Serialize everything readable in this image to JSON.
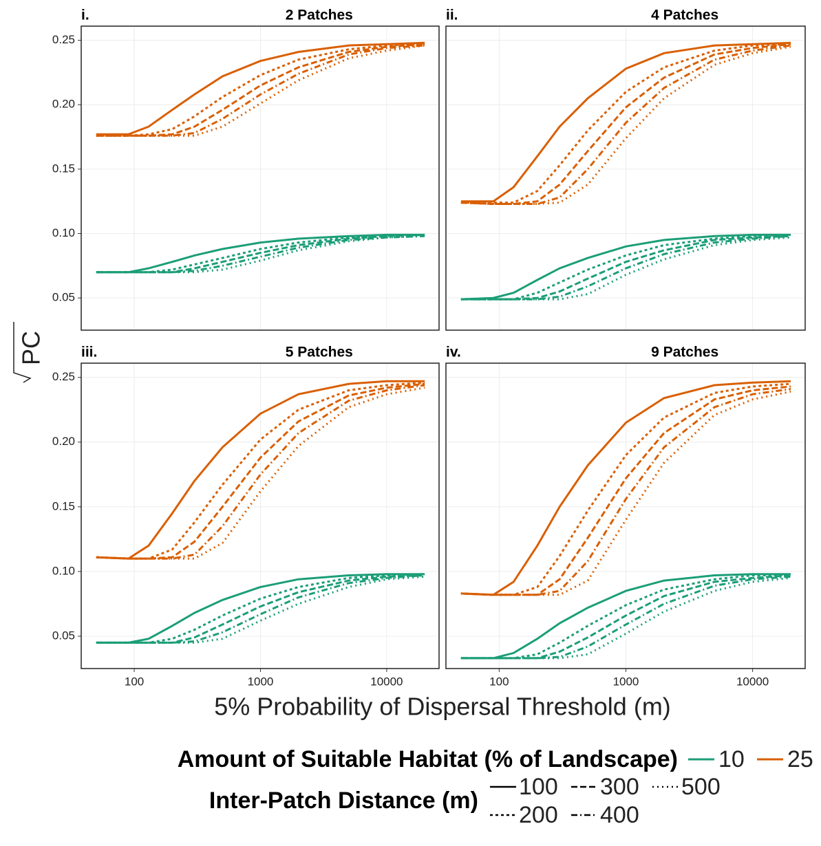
{
  "chart_data": [
    {
      "type": "line",
      "panel": "i.",
      "title": "2 Patches",
      "log_x": true,
      "grid": true,
      "x": [
        50,
        90,
        130,
        200,
        300,
        500,
        1000,
        2000,
        5000,
        10000,
        20000
      ],
      "xlim": [
        38,
        26000
      ],
      "xticks": [
        100,
        1000,
        10000
      ],
      "ylim": [
        0.025,
        0.261
      ],
      "yticks": [
        0.05,
        {
          "value": 0.1,
          "label": "0.10"
        },
        0.15,
        {
          "value": 0.2,
          "label": "0.20"
        },
        0.25
      ],
      "series": [
        {
          "habitat": "10",
          "distance": "100",
          "values": [
            0.07,
            0.07,
            0.073,
            0.078,
            0.083,
            0.088,
            0.093,
            0.096,
            0.098,
            0.099,
            0.099
          ]
        },
        {
          "habitat": "10",
          "distance": "200",
          "values": [
            0.07,
            0.07,
            0.07,
            0.072,
            0.076,
            0.081,
            0.088,
            0.093,
            0.097,
            0.098,
            0.099
          ]
        },
        {
          "habitat": "10",
          "distance": "300",
          "values": [
            0.07,
            0.07,
            0.07,
            0.07,
            0.073,
            0.078,
            0.085,
            0.091,
            0.096,
            0.098,
            0.099
          ]
        },
        {
          "habitat": "10",
          "distance": "400",
          "values": [
            0.07,
            0.07,
            0.07,
            0.07,
            0.071,
            0.075,
            0.082,
            0.089,
            0.095,
            0.097,
            0.098
          ]
        },
        {
          "habitat": "10",
          "distance": "500",
          "values": [
            0.07,
            0.07,
            0.07,
            0.07,
            0.07,
            0.072,
            0.079,
            0.087,
            0.094,
            0.097,
            0.098
          ]
        },
        {
          "habitat": "25",
          "distance": "100",
          "values": [
            0.177,
            0.177,
            0.183,
            0.196,
            0.208,
            0.222,
            0.234,
            0.241,
            0.246,
            0.247,
            0.248
          ]
        },
        {
          "habitat": "25",
          "distance": "200",
          "values": [
            0.176,
            0.176,
            0.177,
            0.181,
            0.191,
            0.206,
            0.223,
            0.235,
            0.243,
            0.246,
            0.247
          ]
        },
        {
          "habitat": "25",
          "distance": "300",
          "values": [
            0.176,
            0.176,
            0.176,
            0.177,
            0.183,
            0.196,
            0.215,
            0.229,
            0.241,
            0.245,
            0.247
          ]
        },
        {
          "habitat": "25",
          "distance": "400",
          "values": [
            0.176,
            0.176,
            0.176,
            0.176,
            0.178,
            0.189,
            0.208,
            0.224,
            0.239,
            0.244,
            0.246
          ]
        },
        {
          "habitat": "25",
          "distance": "500",
          "values": [
            0.176,
            0.176,
            0.176,
            0.176,
            0.176,
            0.183,
            0.201,
            0.219,
            0.236,
            0.242,
            0.246
          ]
        }
      ]
    },
    {
      "type": "line",
      "panel": "ii.",
      "title": "4 Patches",
      "log_x": true,
      "grid": true,
      "x": [
        50,
        90,
        130,
        200,
        300,
        500,
        1000,
        2000,
        5000,
        10000,
        20000
      ],
      "xlim": [
        38,
        26000
      ],
      "xticks": [
        100,
        1000,
        10000
      ],
      "ylim": [
        0.025,
        0.261
      ],
      "yticks": [
        0.05,
        {
          "value": 0.1,
          "label": "0.10"
        },
        0.15,
        {
          "value": 0.2,
          "label": "0.20"
        },
        0.25
      ],
      "series": [
        {
          "habitat": "10",
          "distance": "100",
          "values": [
            0.049,
            0.05,
            0.054,
            0.064,
            0.073,
            0.081,
            0.09,
            0.095,
            0.098,
            0.099,
            0.099
          ]
        },
        {
          "habitat": "10",
          "distance": "200",
          "values": [
            0.049,
            0.049,
            0.049,
            0.054,
            0.062,
            0.072,
            0.083,
            0.091,
            0.096,
            0.098,
            0.099
          ]
        },
        {
          "habitat": "10",
          "distance": "300",
          "values": [
            0.049,
            0.049,
            0.049,
            0.05,
            0.055,
            0.065,
            0.078,
            0.087,
            0.095,
            0.097,
            0.098
          ]
        },
        {
          "habitat": "10",
          "distance": "400",
          "values": [
            0.049,
            0.049,
            0.049,
            0.049,
            0.051,
            0.059,
            0.073,
            0.084,
            0.093,
            0.096,
            0.098
          ]
        },
        {
          "habitat": "10",
          "distance": "500",
          "values": [
            0.049,
            0.049,
            0.049,
            0.049,
            0.049,
            0.053,
            0.068,
            0.08,
            0.091,
            0.095,
            0.097
          ]
        },
        {
          "habitat": "25",
          "distance": "100",
          "values": [
            0.125,
            0.125,
            0.136,
            0.16,
            0.183,
            0.205,
            0.228,
            0.24,
            0.246,
            0.247,
            0.248
          ]
        },
        {
          "habitat": "25",
          "distance": "200",
          "values": [
            0.124,
            0.124,
            0.124,
            0.133,
            0.153,
            0.18,
            0.21,
            0.229,
            0.242,
            0.246,
            0.247
          ]
        },
        {
          "habitat": "25",
          "distance": "300",
          "values": [
            0.124,
            0.123,
            0.123,
            0.125,
            0.138,
            0.164,
            0.198,
            0.221,
            0.239,
            0.244,
            0.247
          ]
        },
        {
          "habitat": "25",
          "distance": "400",
          "values": [
            0.124,
            0.123,
            0.123,
            0.123,
            0.128,
            0.15,
            0.186,
            0.213,
            0.235,
            0.242,
            0.246
          ]
        },
        {
          "habitat": "25",
          "distance": "500",
          "values": [
            0.124,
            0.123,
            0.123,
            0.123,
            0.124,
            0.138,
            0.174,
            0.205,
            0.231,
            0.24,
            0.245
          ]
        }
      ]
    },
    {
      "type": "line",
      "panel": "iii.",
      "title": "5 Patches",
      "log_x": true,
      "grid": true,
      "x": [
        50,
        90,
        130,
        200,
        300,
        500,
        1000,
        2000,
        5000,
        10000,
        20000
      ],
      "xlim": [
        38,
        26000
      ],
      "xticks": [
        100,
        1000,
        10000
      ],
      "ylim": [
        0.025,
        0.261
      ],
      "yticks": [
        0.05,
        {
          "value": 0.1,
          "label": "0.10"
        },
        0.15,
        {
          "value": 0.2,
          "label": "0.20"
        },
        0.25
      ],
      "series": [
        {
          "habitat": "10",
          "distance": "100",
          "values": [
            0.045,
            0.045,
            0.048,
            0.058,
            0.068,
            0.078,
            0.088,
            0.094,
            0.097,
            0.098,
            0.098
          ]
        },
        {
          "habitat": "10",
          "distance": "200",
          "values": [
            0.045,
            0.045,
            0.045,
            0.048,
            0.055,
            0.066,
            0.079,
            0.088,
            0.095,
            0.097,
            0.098
          ]
        },
        {
          "habitat": "10",
          "distance": "300",
          "values": [
            0.045,
            0.045,
            0.045,
            0.045,
            0.049,
            0.059,
            0.073,
            0.084,
            0.093,
            0.096,
            0.097
          ]
        },
        {
          "habitat": "10",
          "distance": "400",
          "values": [
            0.045,
            0.045,
            0.045,
            0.045,
            0.046,
            0.053,
            0.067,
            0.08,
            0.091,
            0.095,
            0.097
          ]
        },
        {
          "habitat": "10",
          "distance": "500",
          "values": [
            0.045,
            0.045,
            0.045,
            0.045,
            0.045,
            0.048,
            0.062,
            0.075,
            0.088,
            0.094,
            0.096
          ]
        },
        {
          "habitat": "25",
          "distance": "100",
          "values": [
            0.111,
            0.11,
            0.12,
            0.145,
            0.17,
            0.196,
            0.222,
            0.237,
            0.245,
            0.247,
            0.247
          ]
        },
        {
          "habitat": "25",
          "distance": "200",
          "values": [
            0.111,
            0.11,
            0.11,
            0.117,
            0.138,
            0.167,
            0.202,
            0.225,
            0.24,
            0.244,
            0.246
          ]
        },
        {
          "habitat": "25",
          "distance": "300",
          "values": [
            0.111,
            0.11,
            0.11,
            0.111,
            0.123,
            0.15,
            0.188,
            0.216,
            0.236,
            0.242,
            0.245
          ]
        },
        {
          "habitat": "25",
          "distance": "400",
          "values": [
            0.111,
            0.11,
            0.11,
            0.11,
            0.113,
            0.135,
            0.175,
            0.207,
            0.232,
            0.24,
            0.244
          ]
        },
        {
          "habitat": "25",
          "distance": "500",
          "values": [
            0.111,
            0.11,
            0.11,
            0.11,
            0.11,
            0.122,
            0.162,
            0.197,
            0.227,
            0.237,
            0.242
          ]
        }
      ]
    },
    {
      "type": "line",
      "panel": "iv.",
      "title": "9 Patches",
      "log_x": true,
      "grid": true,
      "x": [
        50,
        90,
        130,
        200,
        300,
        500,
        1000,
        2000,
        5000,
        10000,
        20000
      ],
      "xlim": [
        38,
        26000
      ],
      "xticks": [
        100,
        1000,
        10000
      ],
      "ylim": [
        0.025,
        0.261
      ],
      "yticks": [
        0.05,
        {
          "value": 0.1,
          "label": "0.10"
        },
        0.15,
        {
          "value": 0.2,
          "label": "0.20"
        },
        0.25
      ],
      "series": [
        {
          "habitat": "10",
          "distance": "100",
          "values": [
            0.033,
            0.033,
            0.037,
            0.048,
            0.06,
            0.072,
            0.085,
            0.093,
            0.097,
            0.098,
            0.098
          ]
        },
        {
          "habitat": "10",
          "distance": "200",
          "values": [
            0.033,
            0.033,
            0.033,
            0.036,
            0.045,
            0.058,
            0.074,
            0.086,
            0.094,
            0.097,
            0.097
          ]
        },
        {
          "habitat": "10",
          "distance": "300",
          "values": [
            0.033,
            0.033,
            0.033,
            0.033,
            0.038,
            0.049,
            0.066,
            0.081,
            0.092,
            0.095,
            0.097
          ]
        },
        {
          "habitat": "10",
          "distance": "400",
          "values": [
            0.033,
            0.033,
            0.033,
            0.033,
            0.034,
            0.042,
            0.059,
            0.075,
            0.089,
            0.094,
            0.096
          ]
        },
        {
          "habitat": "10",
          "distance": "500",
          "values": [
            0.033,
            0.033,
            0.033,
            0.033,
            0.033,
            0.036,
            0.052,
            0.069,
            0.085,
            0.092,
            0.095
          ]
        },
        {
          "habitat": "25",
          "distance": "100",
          "values": [
            0.083,
            0.082,
            0.092,
            0.12,
            0.15,
            0.182,
            0.215,
            0.234,
            0.244,
            0.246,
            0.247
          ]
        },
        {
          "habitat": "25",
          "distance": "200",
          "values": [
            0.083,
            0.082,
            0.082,
            0.088,
            0.112,
            0.147,
            0.19,
            0.219,
            0.238,
            0.243,
            0.245
          ]
        },
        {
          "habitat": "25",
          "distance": "300",
          "values": [
            0.083,
            0.082,
            0.082,
            0.082,
            0.094,
            0.126,
            0.172,
            0.207,
            0.233,
            0.24,
            0.243
          ]
        },
        {
          "habitat": "25",
          "distance": "400",
          "values": [
            0.083,
            0.082,
            0.082,
            0.082,
            0.085,
            0.108,
            0.156,
            0.196,
            0.227,
            0.237,
            0.241
          ]
        },
        {
          "habitat": "25",
          "distance": "500",
          "values": [
            0.083,
            0.082,
            0.082,
            0.082,
            0.082,
            0.093,
            0.14,
            0.184,
            0.221,
            0.233,
            0.239
          ]
        }
      ]
    }
  ],
  "x_label": "5% Probability of Dispersal Threshold (m)",
  "y_label": "PC",
  "legend": {
    "habitat": {
      "title": "Amount of Suitable Habitat (% of Landscape)",
      "items": [
        {
          "label": "10",
          "color": "#1b9e77"
        },
        {
          "label": "25",
          "color": "#d95f02"
        }
      ]
    },
    "distance": {
      "title": "Inter-Patch Distance (m)",
      "items": [
        {
          "label": "100",
          "dash": "none"
        },
        {
          "label": "200",
          "dash": "4 4"
        },
        {
          "label": "300",
          "dash": "9 4"
        },
        {
          "label": "400",
          "dash": "9 4 2 4"
        },
        {
          "label": "500",
          "dash": "2 5"
        }
      ]
    }
  }
}
